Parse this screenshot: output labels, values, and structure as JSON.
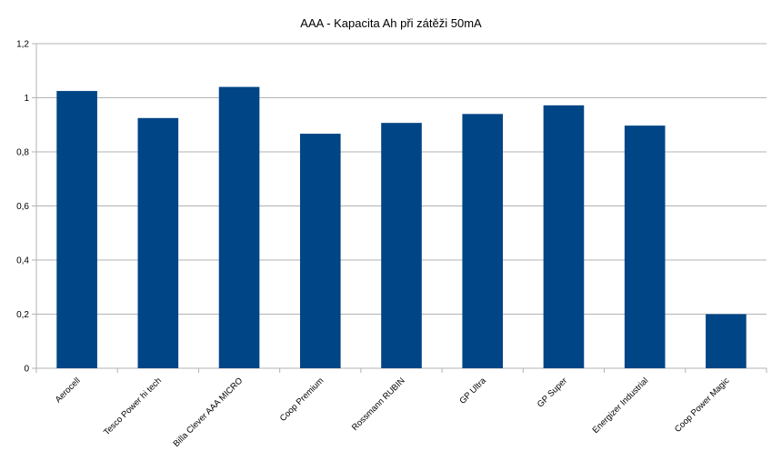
{
  "chart_data": {
    "type": "bar",
    "title": "AAA - Kapacita Ah při zátěži 50mA",
    "categories": [
      "Aerocell",
      "Tesco Power hi tech",
      "Billa Clever AAA MICRO",
      "Coop Premium",
      "Rossmann RUBIN",
      "GP Ultra",
      "GP Super",
      "Energizer Industrial",
      "Coop Power Magic"
    ],
    "values": [
      1.025,
      0.925,
      1.04,
      0.867,
      0.907,
      0.94,
      0.972,
      0.897,
      0.2
    ],
    "yticks": [
      "0",
      "0,2",
      "0,4",
      "0,6",
      "0,8",
      "1",
      "1,2"
    ],
    "ylim": [
      0,
      1.2
    ],
    "xlabel": "",
    "ylabel": "",
    "grid": true,
    "legend": "none",
    "bar_color": "#004586",
    "grid_color": "#b3b3b3"
  }
}
